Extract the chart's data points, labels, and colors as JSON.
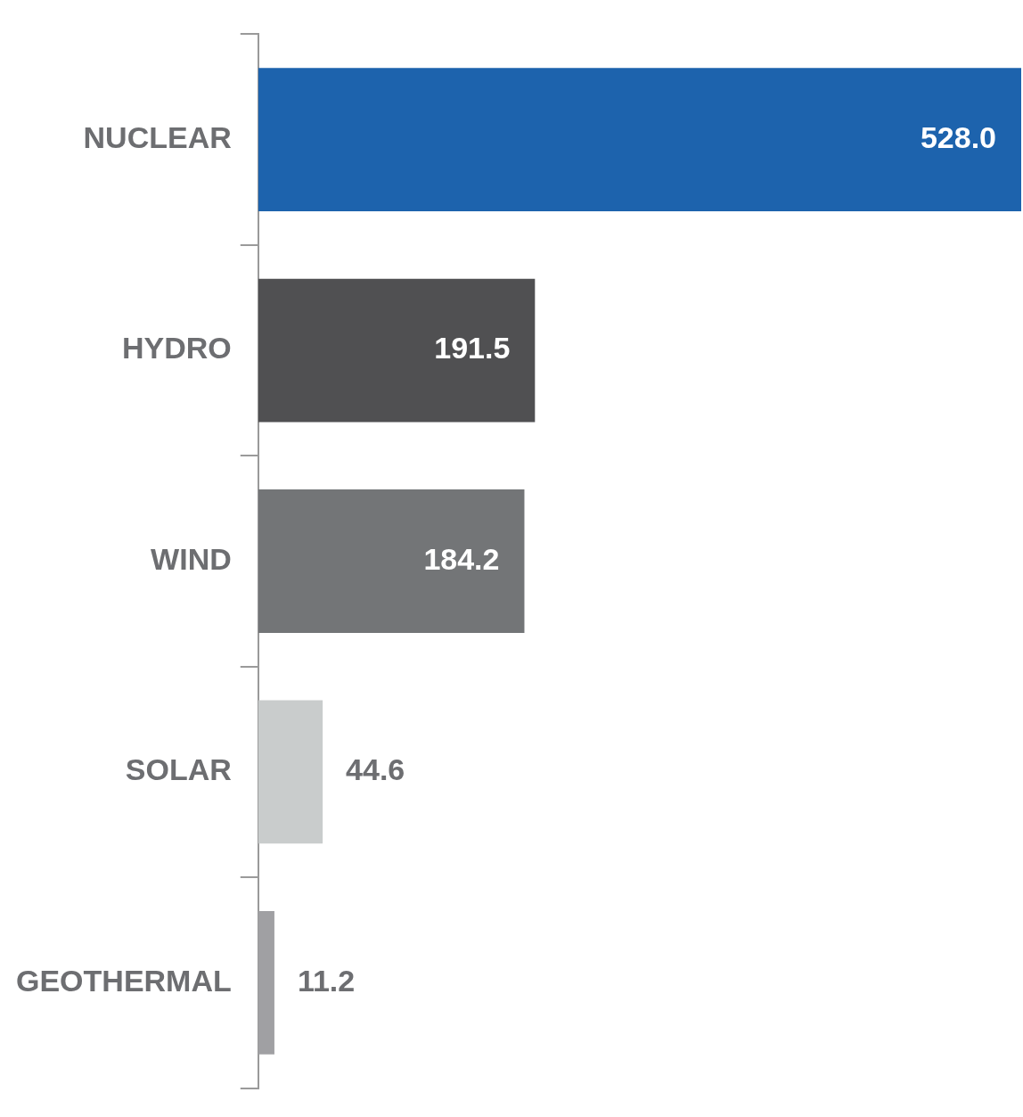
{
  "chart_data": {
    "type": "bar",
    "orientation": "horizontal",
    "categories": [
      "NUCLEAR",
      "HYDRO",
      "WIND",
      "SOLAR",
      "GEOTHERMAL"
    ],
    "values": [
      528.0,
      191.5,
      184.2,
      44.6,
      11.2
    ],
    "colors": [
      "#1d63ad",
      "#505052",
      "#737577",
      "#c9cccc",
      "#a0a0a3"
    ],
    "value_labels": [
      "528.0",
      "191.5",
      "184.2",
      "44.6",
      "11.2"
    ],
    "xlim": [
      0,
      528
    ]
  }
}
